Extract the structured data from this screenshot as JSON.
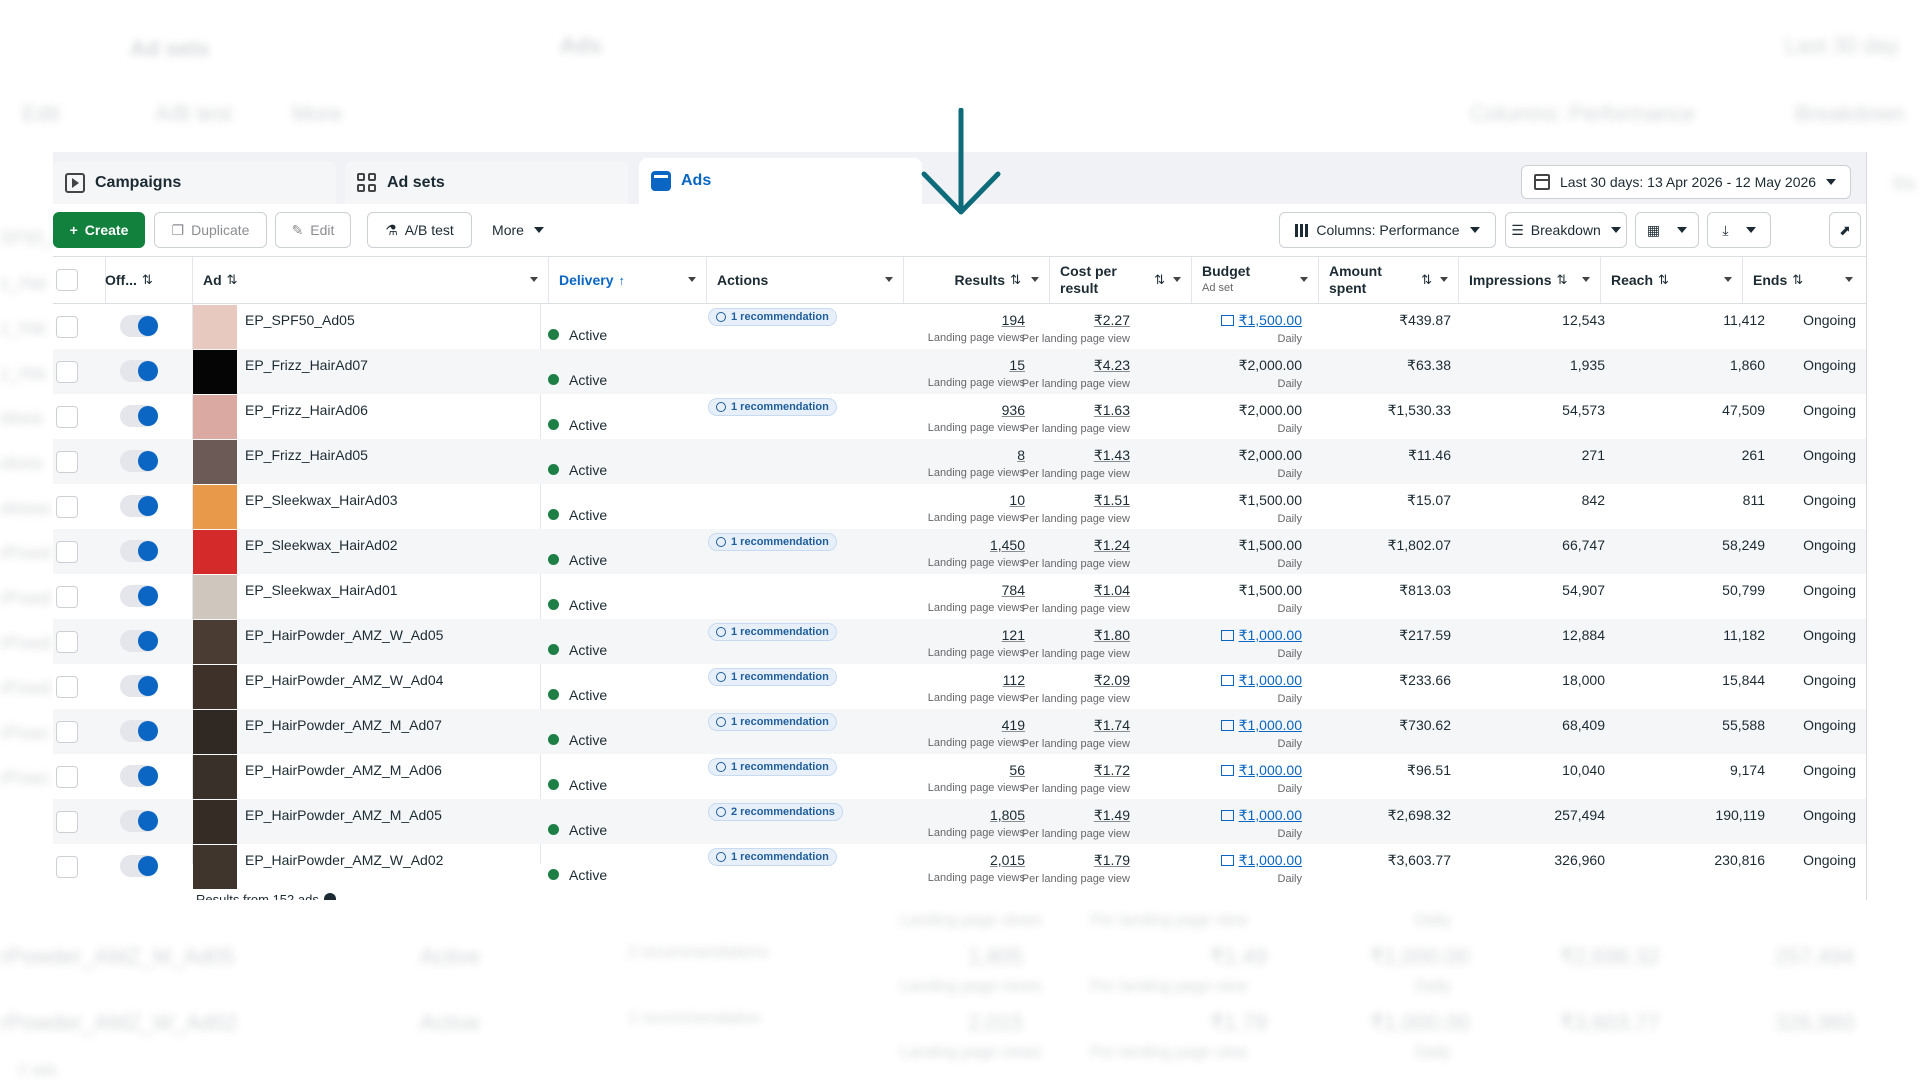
{
  "ghost": {
    "top_tab_adsets": "Ad sets",
    "top_tab_ads": "Ads",
    "top_date": "Last 30 day",
    "edit": "Edit",
    "ab": "A/B test",
    "more": "More",
    "columns": "Columns: Performance",
    "breakdown": "Breakdown",
    "left_labels": [
      "SF50_Ad",
      "z_Hai",
      "z_Hai",
      "z_Hai",
      "ekwa",
      "ekwa",
      "ekwax",
      "rPowd",
      "rPowd",
      "rPowd",
      "rPowd",
      "rPowc",
      "rPowc"
    ],
    "row1": {
      "name": "rPowder_AMZ_M_Ad05",
      "delivery": "Active",
      "actions": "2 recommendations",
      "results": "1,805",
      "results_unit": "Landing page views",
      "cpr": "₹1.49",
      "cpr_unit": "Per landing page view",
      "budget": "₹1,000.00",
      "budget_unit": "Daily",
      "amount": "₹2,698.32",
      "impressions": "257,494"
    },
    "row2": {
      "name": "rPowder_AMZ_W_Ad02",
      "delivery": "Active",
      "actions": "1 recommendation",
      "results": "2,015",
      "results_unit": "Landing page views",
      "cpr": "₹1.79",
      "cpr_unit": "Per landing page view",
      "budget": "₹1,000.00",
      "budget_unit": "Daily",
      "amount": "₹3,603.77",
      "impressions": "326,960"
    },
    "top_row_units": {
      "results": "Landing page views",
      "cpr": "Per landing page view",
      "budget": "Daily"
    },
    "footer_stub": "2 ads",
    "right_stub": "Re"
  },
  "tabs": [
    {
      "label": "Campaigns",
      "icon": "campaign-icon"
    },
    {
      "label": "Ad sets",
      "icon": "grid-icon"
    },
    {
      "label": "Ads",
      "icon": "ads-icon",
      "active": true
    }
  ],
  "date_range": "Last 30 days: 13 Apr 2026 - 12 May 2026",
  "toolbar": {
    "create": "Create",
    "duplicate": "Duplicate",
    "edit": "Edit",
    "ab_test": "A/B test",
    "more": "More",
    "columns": "Columns: Performance",
    "breakdown": "Breakdown"
  },
  "columns": {
    "off": "Off...",
    "ad": "Ad",
    "delivery": "Delivery",
    "actions": "Actions",
    "results": "Results",
    "cost_per_result_1": "Cost per",
    "cost_per_result_2": "result",
    "budget": "Budget",
    "budget_sub": "Ad set",
    "amount_spent_1": "Amount",
    "amount_spent_2": "spent",
    "impressions": "Impressions",
    "reach": "Reach",
    "ends": "Ends"
  },
  "rows": [
    {
      "name": "EP_SPF50_Ad05",
      "delivery": "Active",
      "action": "1 recommendation",
      "results": "194",
      "results_unit": "Landing page views",
      "cpr": "₹2.27",
      "cpr_unit": "Per landing page view",
      "budget": "₹1,500.00",
      "budget_link": true,
      "budget_unit": "Daily",
      "amount": "₹439.87",
      "impressions": "12,543",
      "reach": "11,412",
      "ends": "Ongoing",
      "thumb": "#e8c9c0"
    },
    {
      "name": "EP_Frizz_HairAd07",
      "delivery": "Active",
      "action": "",
      "results": "15",
      "results_unit": "Landing page views",
      "cpr": "₹4.23",
      "cpr_unit": "Per landing page view",
      "budget": "₹2,000.00",
      "budget_link": false,
      "budget_unit": "Daily",
      "amount": "₹63.38",
      "impressions": "1,935",
      "reach": "1,860",
      "ends": "Ongoing",
      "thumb": "#050505"
    },
    {
      "name": "EP_Frizz_HairAd06",
      "delivery": "Active",
      "action": "1 recommendation",
      "results": "936",
      "results_unit": "Landing page views",
      "cpr": "₹1.63",
      "cpr_unit": "Per landing page view",
      "budget": "₹2,000.00",
      "budget_link": false,
      "budget_unit": "Daily",
      "amount": "₹1,530.33",
      "impressions": "54,573",
      "reach": "47,509",
      "ends": "Ongoing",
      "thumb": "#d9a9a2"
    },
    {
      "name": "EP_Frizz_HairAd05",
      "delivery": "Active",
      "action": "",
      "results": "8",
      "results_unit": "Landing page views",
      "cpr": "₹1.43",
      "cpr_unit": "Per landing page view",
      "budget": "₹2,000.00",
      "budget_link": false,
      "budget_unit": "Daily",
      "amount": "₹11.46",
      "impressions": "271",
      "reach": "261",
      "ends": "Ongoing",
      "thumb": "#6b5a55"
    },
    {
      "name": "EP_Sleekwax_HairAd03",
      "delivery": "Active",
      "action": "",
      "results": "10",
      "results_unit": "Landing page views",
      "cpr": "₹1.51",
      "cpr_unit": "Per landing page view",
      "budget": "₹1,500.00",
      "budget_link": false,
      "budget_unit": "Daily",
      "amount": "₹15.07",
      "impressions": "842",
      "reach": "811",
      "ends": "Ongoing",
      "thumb": "#e89a4a"
    },
    {
      "name": "EP_Sleekwax_HairAd02",
      "delivery": "Active",
      "action": "1 recommendation",
      "results": "1,450",
      "results_unit": "Landing page views",
      "cpr": "₹1.24",
      "cpr_unit": "Per landing page view",
      "budget": "₹1,500.00",
      "budget_link": false,
      "budget_unit": "Daily",
      "amount": "₹1,802.07",
      "impressions": "66,747",
      "reach": "58,249",
      "ends": "Ongoing",
      "thumb": "#d42a2a"
    },
    {
      "name": "EP_Sleekwax_HairAd01",
      "delivery": "Active",
      "action": "",
      "results": "784",
      "results_unit": "Landing page views",
      "cpr": "₹1.04",
      "cpr_unit": "Per landing page view",
      "budget": "₹1,500.00",
      "budget_link": false,
      "budget_unit": "Daily",
      "amount": "₹813.03",
      "impressions": "54,907",
      "reach": "50,799",
      "ends": "Ongoing",
      "thumb": "#cfc6be"
    },
    {
      "name": "EP_HairPowder_AMZ_W_Ad05",
      "delivery": "Active",
      "action": "1 recommendation",
      "results": "121",
      "results_unit": "Landing page views",
      "cpr": "₹1.80",
      "cpr_unit": "Per landing page view",
      "budget": "₹1,000.00",
      "budget_link": true,
      "budget_unit": "Daily",
      "amount": "₹217.59",
      "impressions": "12,884",
      "reach": "11,182",
      "ends": "Ongoing",
      "thumb": "#4a3b33"
    },
    {
      "name": "EP_HairPowder_AMZ_W_Ad04",
      "delivery": "Active",
      "action": "1 recommendation",
      "results": "112",
      "results_unit": "Landing page views",
      "cpr": "₹2.09",
      "cpr_unit": "Per landing page view",
      "budget": "₹1,000.00",
      "budget_link": true,
      "budget_unit": "Daily",
      "amount": "₹233.66",
      "impressions": "18,000",
      "reach": "15,844",
      "ends": "Ongoing",
      "thumb": "#3d3129"
    },
    {
      "name": "EP_HairPowder_AMZ_M_Ad07",
      "delivery": "Active",
      "action": "1 recommendation",
      "results": "419",
      "results_unit": "Landing page views",
      "cpr": "₹1.74",
      "cpr_unit": "Per landing page view",
      "budget": "₹1,000.00",
      "budget_link": true,
      "budget_unit": "Daily",
      "amount": "₹730.62",
      "impressions": "68,409",
      "reach": "55,588",
      "ends": "Ongoing",
      "thumb": "#2f2823"
    },
    {
      "name": "EP_HairPowder_AMZ_M_Ad06",
      "delivery": "Active",
      "action": "1 recommendation",
      "results": "56",
      "results_unit": "Landing page views",
      "cpr": "₹1.72",
      "cpr_unit": "Per landing page view",
      "budget": "₹1,000.00",
      "budget_link": true,
      "budget_unit": "Daily",
      "amount": "₹96.51",
      "impressions": "10,040",
      "reach": "9,174",
      "ends": "Ongoing",
      "thumb": "#3a302a"
    },
    {
      "name": "EP_HairPowder_AMZ_M_Ad05",
      "delivery": "Active",
      "action": "2 recommendations",
      "results": "1,805",
      "results_unit": "Landing page views",
      "cpr": "₹1.49",
      "cpr_unit": "Per landing page view",
      "budget": "₹1,000.00",
      "budget_link": true,
      "budget_unit": "Daily",
      "amount": "₹2,698.32",
      "impressions": "257,494",
      "reach": "190,119",
      "ends": "Ongoing",
      "thumb": "#352c26"
    },
    {
      "name": "EP_HairPowder_AMZ_W_Ad02",
      "delivery": "Active",
      "action": "1 recommendation",
      "results": "2,015",
      "results_unit": "Landing page views",
      "cpr": "₹1.79",
      "cpr_unit": "Per landing page view",
      "budget": "₹1,000.00",
      "budget_link": true,
      "budget_unit": "Daily",
      "amount": "₹3,603.77",
      "impressions": "326,960",
      "reach": "230,816",
      "ends": "Ongoing",
      "thumb": "#40352d"
    }
  ],
  "footer": "Results from 152 ads",
  "colors": {
    "accent": "#0a66c2",
    "create_green": "#12813e",
    "active_dot": "#1e7f46",
    "arrow": "#0e6b7a"
  }
}
